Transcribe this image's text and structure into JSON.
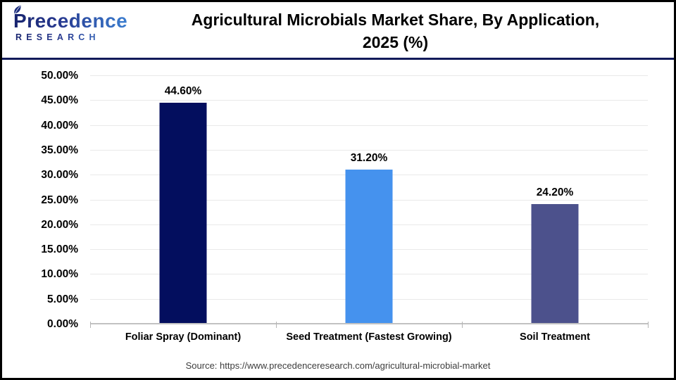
{
  "header": {
    "logo": {
      "line1": "Precedence",
      "line2": "RESEARCH"
    },
    "title_line1": "Agricultural Microbials Market Share, By Application,",
    "title_line2": "2025 (%)"
  },
  "chart_data": {
    "type": "bar",
    "title": "Agricultural Microbials Market Share, By Application, 2025 (%)",
    "categories": [
      "Foliar Spray (Dominant)",
      "Seed Treatment (Fastest Growing)",
      "Soil Treatment"
    ],
    "values": [
      44.6,
      31.2,
      24.2
    ],
    "value_labels": [
      "44.60%",
      "31.20%",
      "24.20%"
    ],
    "bar_colors": [
      "#030e5e",
      "#4592ee",
      "#4c518c"
    ],
    "xlabel": "",
    "ylabel": "",
    "ylim": [
      0,
      50
    ],
    "ytick_step": 5,
    "ytick_labels": [
      "0.00%",
      "5.00%",
      "10.00%",
      "15.00%",
      "20.00%",
      "25.00%",
      "30.00%",
      "35.00%",
      "40.00%",
      "45.00%",
      "50.00%"
    ],
    "grid": "horizontal",
    "legend": "none"
  },
  "footer": {
    "source": "Source: https://www.precedenceresearch.com/agricultural-microbial-market"
  }
}
